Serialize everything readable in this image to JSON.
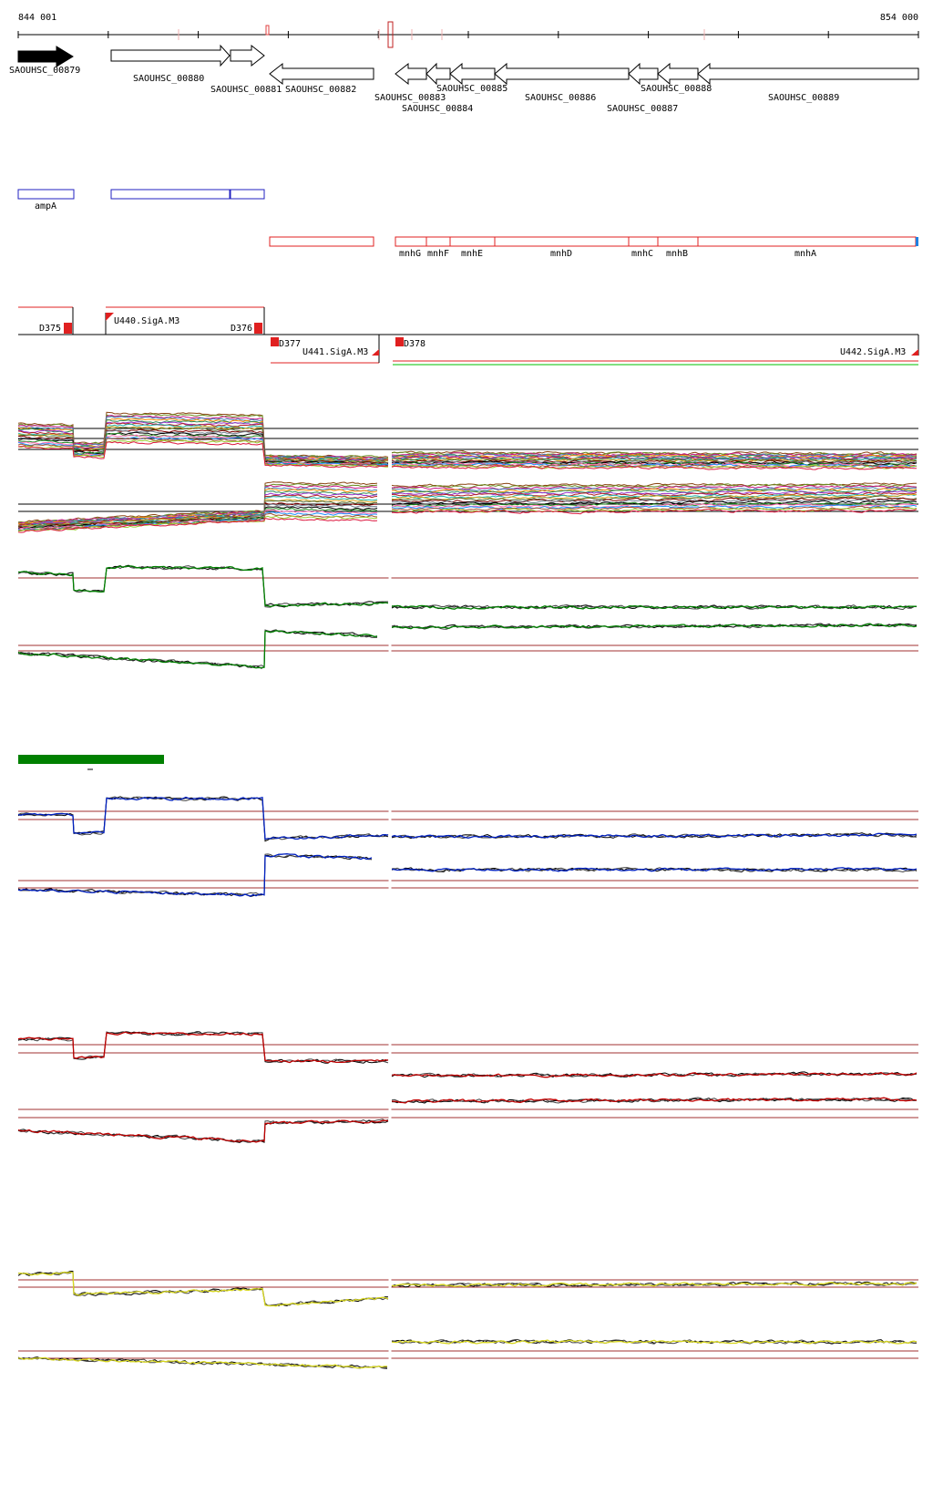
{
  "coordinates": {
    "start": "844 001",
    "end": "854 000"
  },
  "genes": [
    {
      "id": "SAOUHSC_00879",
      "filled": true
    },
    {
      "id": "SAOUHSC_00880"
    },
    {
      "id": "SAOUHSC_00881"
    },
    {
      "id": "SAOUHSC_00882"
    },
    {
      "id": "SAOUHSC_00883"
    },
    {
      "id": "SAOUHSC_00884"
    },
    {
      "id": "SAOUHSC_00885"
    },
    {
      "id": "SAOUHSC_00886"
    },
    {
      "id": "SAOUHSC_00887"
    },
    {
      "id": "SAOUHSC_00888"
    },
    {
      "id": "SAOUHSC_00889"
    }
  ],
  "blue_annotations": [
    "ampA"
  ],
  "red_annotations": [
    "mnhG",
    "mnhF",
    "mnhE",
    "mnhD",
    "mnhC",
    "mnhB",
    "mnhA"
  ],
  "transcription_units": [
    "D375",
    "U440.SigA.M3",
    "D376",
    "D377",
    "U441.SigA.M3",
    "D378",
    "U442.SigA.M3"
  ],
  "expression_panels": [
    {
      "name": "multi-condition",
      "color": "#808080"
    },
    {
      "name": "green",
      "color": "#008000"
    },
    {
      "name": "blue",
      "color": "#0020c0"
    },
    {
      "name": "red",
      "color": "#c00000"
    },
    {
      "name": "yellow",
      "color": "#d8d820"
    }
  ],
  "colors": {
    "gene_outline": "#000000",
    "blue_box": "#2020c0",
    "red_box": "#e02020",
    "threshold_line": "#a03030",
    "scale_bar": "#008000",
    "green_line": "#80e080"
  }
}
